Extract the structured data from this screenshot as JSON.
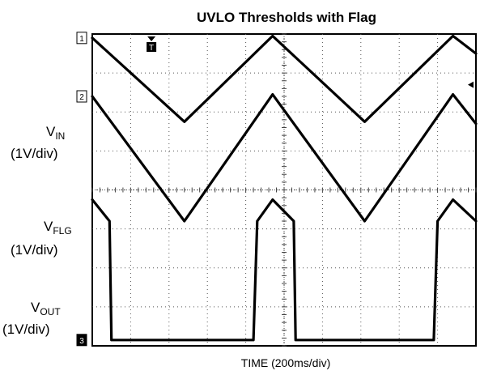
{
  "chart_data": {
    "type": "line",
    "title": "UVLO Thresholds with Flag",
    "xlabel": "TIME (200ms/div)",
    "grid": true,
    "x_divisions": 10,
    "y_divisions": 8,
    "time_per_div_ms": 200,
    "channels": [
      {
        "name": "VIN",
        "label_main": "V",
        "label_sub": "IN",
        "scale": "(1V/div)",
        "marker": "1",
        "points": [
          [
            0,
            7.9
          ],
          [
            2.4,
            5.75
          ],
          [
            4.7,
            7.95
          ],
          [
            7.1,
            5.75
          ],
          [
            9.4,
            7.95
          ],
          [
            10,
            7.5
          ]
        ]
      },
      {
        "name": "VFLG",
        "label_main": "V",
        "label_sub": "FLG",
        "scale": "(1V/div)",
        "marker": "2",
        "points": [
          [
            0,
            6.4
          ],
          [
            2.4,
            3.2
          ],
          [
            4.7,
            6.45
          ],
          [
            7.1,
            3.2
          ],
          [
            9.4,
            6.45
          ],
          [
            10,
            5.7
          ]
        ]
      },
      {
        "name": "VOUT",
        "label_main": "V",
        "label_sub": "OUT",
        "scale": "(1V/div)",
        "marker": "3",
        "points": [
          [
            0,
            3.75
          ],
          [
            0.45,
            3.2
          ],
          [
            0.5,
            0.15
          ],
          [
            4.2,
            0.15
          ],
          [
            4.3,
            3.2
          ],
          [
            4.7,
            3.75
          ],
          [
            5.25,
            3.2
          ],
          [
            5.3,
            0.15
          ],
          [
            8.9,
            0.15
          ],
          [
            9.0,
            3.2
          ],
          [
            9.4,
            3.75
          ],
          [
            10,
            3.2
          ]
        ]
      }
    ],
    "trigger_marker": "T"
  }
}
